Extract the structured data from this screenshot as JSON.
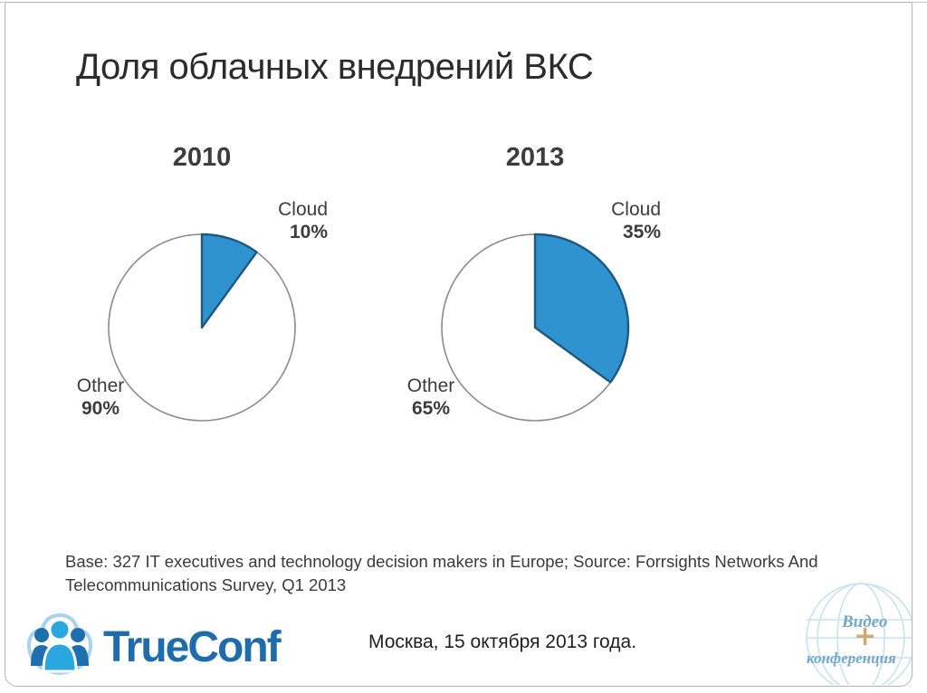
{
  "slide": {
    "title": "Доля облачных внедрений ВКС",
    "footnote_line1": "Base: 327 IT executives and technology decision makers in Europe; Source: Forrsights Networks And",
    "footnote_line2": "Telecommunications Survey, Q1 2013",
    "footer": {
      "logo_text": "TrueConf",
      "date_location": "Москва, 15 октября 2013 года."
    },
    "watermark": {
      "line1": "Видео",
      "plus": "+",
      "line2": "конференция"
    }
  },
  "colors": {
    "pie_fill": "#2E93CE",
    "pie_slice_stroke": "#1F587E",
    "pie_circle_stroke": "#8C8C8C",
    "logo_blue": "#1E6CAB",
    "logo_light_blue": "#2AA7DF",
    "wm_text": "#74A9C8",
    "wm_gold": "#C9AC6E",
    "wm_globe": "#C9E2EF",
    "text_dark": "#2B2B2B",
    "text_gray": "#3C3C3C"
  },
  "chart_data": [
    {
      "type": "pie",
      "title": "2010",
      "start_angle_deg": 0,
      "direction": "clockwise",
      "slices": [
        {
          "label": "Cloud",
          "value": 10,
          "display": "10%",
          "color": "#2E93CE"
        },
        {
          "label": "Other",
          "value": 90,
          "display": "90%",
          "color": "#FFFFFF"
        }
      ],
      "labels_position": "outside"
    },
    {
      "type": "pie",
      "title": "2013",
      "start_angle_deg": 0,
      "direction": "clockwise",
      "slices": [
        {
          "label": "Cloud",
          "value": 35,
          "display": "35%",
          "color": "#2E93CE"
        },
        {
          "label": "Other",
          "value": 65,
          "display": "65%",
          "color": "#FFFFFF"
        }
      ],
      "labels_position": "outside"
    }
  ]
}
